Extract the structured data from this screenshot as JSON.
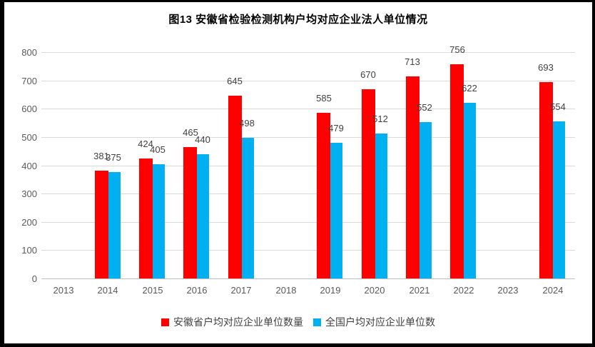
{
  "chart_data": {
    "type": "bar",
    "title": "图13 安徽省检验检测机构户均对应企业法人单位情况",
    "categories": [
      "2013",
      "2014",
      "2015",
      "2016",
      "2017",
      "2018",
      "2019",
      "2020",
      "2021",
      "2022",
      "2023",
      "2024"
    ],
    "series": [
      {
        "name": "安徽省户均对应企业单位数量",
        "color": "#ff0000",
        "values": [
          null,
          381,
          424,
          465,
          645,
          null,
          585,
          670,
          713,
          756,
          null,
          693
        ]
      },
      {
        "name": "全国户均对应企业单位数",
        "color": "#00b0f0",
        "values": [
          null,
          375,
          405,
          440,
          498,
          null,
          479,
          512,
          552,
          622,
          null,
          554
        ]
      }
    ],
    "xlabel": "",
    "ylabel": "",
    "ylim": [
      0,
      800
    ],
    "ytick_step": 100,
    "grid": true,
    "legend_position": "bottom",
    "colors": {
      "grid": "#d9d9d9",
      "axis_line": "#bfbfbf",
      "tick_text": "#595959",
      "data_label_text": "#404040",
      "title_text": "#000000",
      "frame_border": "#000000"
    }
  }
}
